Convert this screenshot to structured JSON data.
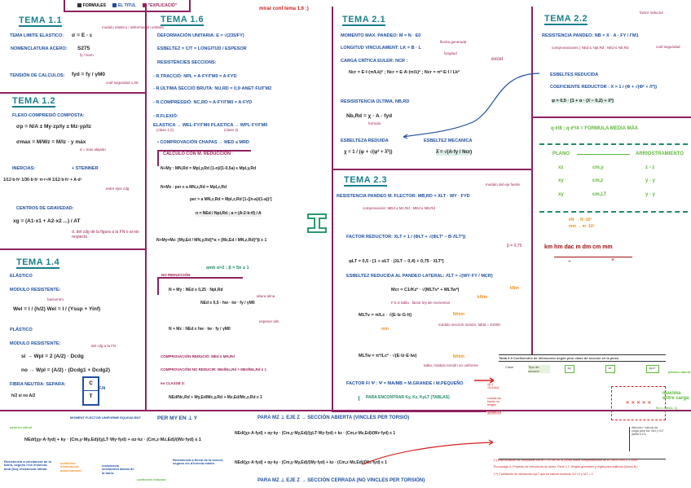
{
  "legend": {
    "items": [
      {
        "label": "FORMULES",
        "color": "#333333"
      },
      {
        "label": "EL TITUL",
        "color": "#1d4fa0"
      },
      {
        "label": "\"EXPLICACIÓ\"",
        "color": "#a0205a"
      }
    ]
  },
  "note_top": "mirar conf tema 1.6 :)",
  "colors": {
    "heading": "#1a7f8c",
    "title": "#1d4fa0",
    "explain": "#a0205a",
    "divider": "#8e2160",
    "green": "#5fb83a",
    "orange": "#f08c1a",
    "red": "#d42020"
  },
  "t11": {
    "title": "TEMA 1.1",
    "lines": [
      {
        "label": "TEMA LIMITE ELASTICO:",
        "formula": "σ = E · ε",
        "note": "modulo elastico / deformación unitaria"
      },
      {
        "label": "NOMENCLATURA ACERO:",
        "formula": "S275",
        "note": "fy / Nom"
      },
      {
        "label": "TENSIÓN DE CALCULOS:",
        "formula": "fyd = fy / γM0",
        "note": "coef seguridad 1,05"
      }
    ]
  },
  "t12": {
    "title": "TEMA 1.2",
    "flexo": "FLEXO-COMPRESIÓ COMPOSTA:",
    "f1": "σp = N/A ± My·zp/Iy ± Mz·yp/Iz",
    "f2": "σmax = M/Wz = M/Iz · y máx",
    "f2note": "d = max alejado",
    "inercias": "INERCIAS:",
    "steiner": "+ STEINNER",
    "f3": "1/12·b·h³   1/36·b·h³   π·r⁴/4   1/12·b·h³ + A·d²",
    "f3note": "entre ejes cdg",
    "centros": "CENTROS DE GRAVEDAD:",
    "f4": "xg = (A1·x1 + A2·x2 ...) / AT",
    "f4note": "d. del cdg de la figura a la FN o al eix respecto"
  },
  "t14": {
    "title": "TEMA 1.4",
    "elastico": "ELÁSTICO",
    "modulo": "MODULO RESISTENTE:",
    "f1": "Wel = I / (h/2)     Wel = I / (Ysup + Yinf)",
    "f1note": "baricentro",
    "plastico": "PLÁSTICO",
    "modulo2": "MODULO RESISTENTE:",
    "f2": "si → Wpl = 2 (A/2) · Dcdg",
    "f2note": "del cdg a la FN",
    "f3": "no → Wpl = (A/2) · (Dcdg1 + Dcdg2)",
    "fibra": "FIBRA NEUTRA: separa:",
    "fibra_sub": "h/2  si  no  A/2",
    "box": [
      "C",
      "T"
    ],
    "boxnote": "F.N"
  },
  "t16": {
    "title": "TEMA 1.6",
    "lines": [
      "DEFORMACIÓN UNITARIA: ε = √(235/fy)",
      "ESBELTEZ = c/t = longitud / espesor",
      "RESISTÈNCIES SECCIONS:",
      "- R.TRACCIÓ: Npl = A·fy/γM0 = A·fyd",
      "- R.ÚLTIMA SECCIÓ BRUTA: Nu,Rd = 0,9·Anet·fu/γM2",
      "- R.COMPRESSIÓ: Nc,Rd = A·fy/γM0 = A·fyd",
      "- R.FLEXIÓ:",
      "ELASTICA → Wel·fy/γM0     PLASTICA → Wpl·fy/γM0",
      "• COMPROVACIÓN CHAPAS → MEd ≤ MRd"
    ],
    "class_notes": [
      "(clase 1,2)",
      "(clase 3)"
    ],
    "reduccion": "CALCULO CON M. REDUCCIÓN",
    "r1": "N+My :  MN,Rd = Mpl,y,Rd (1-n)/(1-0,5a) ≤ Mpl,y,Rd",
    "r2": "N+Mz :  per ≤ a   MN,z,Rd = Mpl,z,Rd",
    "r3": "per > a   MN,z,Rd = Mpl,z,Rd [1-((n-a)/(1-a))²]",
    "r4": "n = NEd / Npl,Rd ;   a = (A-2·b·tf) / A",
    "r5": "N+My+Mz: [My,Ed / MN,y,Rd]^α + [Mz,Ed / MN,z,Rd]^β ≤ 1",
    "r6": "amb α=2 ;  β = 5n ≥ 1",
    "no_reduccion": "NO REDUCCIÓN",
    "n1": "N + My :  NEd ≤ 0,25 · Npl,Rd",
    "n2": "NEd ≤ 0,5 · hw · tw · fy / γM0",
    "n2note": "altura alma",
    "n3": "N + Mz :  NEd ≤ hw · tw · fy / γM0",
    "n3note": "espesor alm",
    "c1": "COMPROVACIÓN REDUCIÓ: MEd ≤ MN,Rd",
    "c2": "COMPROVACIÓN NO REDUCIR: NEd/Nc,Rd + MEd/Mc,Rd ≤ 1",
    "c3": "en CLASSE 3:",
    "c4": "NEd/Nc,Rd + My,Ed/Mc,y,Rd + Mz,Ed/Mc,z,Rd ≤ 1"
  },
  "t21": {
    "title": "TEMA 2.1",
    "lines": [
      "MOMENTO MAX. PANDEO: M = N · e0",
      "LONGITUD VINCULAMENT: Lk = β · L",
      "CARGA CRÍTICA EULER: Ncr :",
      "Ncr = E·I·(π/Lk)² ;  Ncr = E·A·(π/λ)² ;  Ncr = π²·E·I / Lk²",
      "RESISISTENCIA ÚLTIMA, Nb,Rd",
      "Nb,Rd = χ · A · fyd"
    ],
    "notes": [
      "excel",
      "flecha generada",
      "taula",
      "longitud",
      "esbeltez",
      "taula",
      "formula",
      "formula"
    ],
    "esb_red": "ESBELTEZA REDUIDA",
    "esb_red_f": "χ = 1 / (φ + √(φ² + λ̄²))",
    "esb_mec": "ESBELTEZ MECANICA",
    "esb_mec_f": "λ̄ = √(A·fy / Ncr)"
  },
  "t22": {
    "title": "TEMA 2.2",
    "l1": "RESISTENCIA PANDEO:  Nb = χ · A · fy / γM1",
    "l1notes": [
      "factor reductor",
      "coef seguridad"
    ],
    "comp": "comprovaciones { NEd ≤ Npl,Rd ;  NEd ≤ Nb,Rd",
    "esb": "ESBELTES REDUCIDA",
    "coef": "COEFICIENTE REDUCTOR :  χ = 1 / (φ + √(φ² + λ̄²))",
    "phi": "φ = 0,5 · [1 + α · (λ̄ − 0,2) + λ̄²]"
  },
  "green_box": {
    "formula": "q·ℓ/8 ; q·ℓ²/4 = FORMULA MEDIA MÀX",
    "plano": "PLANO",
    "arr": "ARRIOSTRAMIENTO",
    "rows": [
      [
        "xz",
        "cm,y",
        "z - z"
      ],
      [
        "xy",
        "cm,z",
        "y - y"
      ],
      [
        "xy",
        "cm,LT",
        "y - y"
      ]
    ],
    "units": [
      "kN → N   ·10³",
      "mm → m   ·10³"
    ],
    "scale": "km hm dac m dm cm mm",
    "scale_signs": [
      "÷",
      "×"
    ]
  },
  "t23": {
    "title": "TEMA 2.3",
    "l1": "RESISTENCIA PANDEO M. FLECTOR:   Mb,Rd = χLT · Wy · fyd",
    "l1note": "modulo del eje fuerte",
    "comp": "comprovación: MEd ≤ Mc,Rd ;  MEd ≤ Mb,Rd",
    "fr": "FACTOR REDUCTOR:  χLT = 1 / (φLT + √(φLT² − β·λ̄LT²))",
    "beta": "β = 0,75",
    "phi": "φLT = 0,5 · [1 + αLT · (λ̄LT − 0,4) + 0,75 · λ̄LT²]",
    "esb": "ESBELTEZ REDUCIDA AL PANDEO LATERAL:   λ̄LT = √(Wy·fy / Mcr)",
    "knm": "kNm",
    "mcr": "Mcr = C1/Kz² · √(MLTv² + MLTw²)",
    "mcrnote": "kN/m",
    "fss": "F.S.S tabla : factor ley de momentos",
    "mltv": "MLTv = π/Lc · √(E·Iz·G·It)",
    "mltvnote": "módulo sección torsión, tabla  = 81000",
    "mltw": "MLTw = π²/Lc² · √(E·Iz·E·Iw)",
    "mltwnote": "tabla, módulo torsión no uniforme",
    "nmm": "N/mm",
    "mm": "mm",
    "psi": "FACTOR FI Ψ :  Ψ = Ma/Mb = m.grande / m.pequeño",
    "tablas": "PARA ENCONTRAR Ky, Kz, KyLT (TABLAS)"
  },
  "bottom": {
    "title1": "PER My EN ⊥ y",
    "title2": "PARA Mz ⊥ eje z → SECCIÓN ABIERTA (vincles per torsió)",
    "title3": "PARA Mz ⊥ eje z → SECCIÓN CERRADA (no vincles per torsión)",
    "eq1": "NEd/(χy·A·fyd) + ky · (Cm,y·My,Ed)/(χLT·Wy·fyd) + αz·kz · (Cm,z·Mz,Ed)/(Wz·fyd) ≤ 1",
    "eq2": "NEd/(χz·A·fyd) + αy·ky · (Cm,y·My,Ed)/(χLT·Wy·fyd) + kz · (Cm,z·Mz,Ed)/(Wz·fyd) ≤ 1",
    "eq3": "NEd/(χz·A·fyd) + αy·ky · (Cm,y·My,Ed)/(Wy·fyd) + kz · (Cm,z·Mz,Ed)/(Wz·fyd) ≤ 1",
    "notes": [
      "axial de càlcul",
      "moment flector uniforme equivalent",
      "Resistencia a vinclament de la barra, segons l'eix d'inèrcia, amb [Nu] resistencia última",
      "coeficient d'interacció axial-moment",
      "resistencia vinclament lateral de la barra",
      "coeficient reductor",
      "Resistencia a flexió de la secció, segons eix d'inèrcia mínim"
    ]
  },
  "table_ref": {
    "caption": "Tabla 6.9 Coeficientes de interacción según peor clase de sección en la pieza",
    "cols": [
      "Clase",
      "Tipo de sección",
      "ky",
      "kz",
      "kyLT"
    ],
    "notes_right": "Atencion / cálculo de carga para Mz, Mcr y λ̄LT (tabla 6.10)",
    "annot": [
      "λ̄y ≤ √(Lk/dz)",
      "cuando las barras no tengan",
      "λ̄y max 1.0",
      "pandeo lateral",
      "maxima entre carga",
      "Kz = min(1; 1)"
    ],
    "footnote": [
      "(*) Esta ecuación es compatible con el CTE-DB SE-A (2006) sobre comportamiento de EC3/EN 1993-1-1:2005.",
      "Eurocódigo 3: Proyecto de estructuras de acero. Parte 1-1: Reglas generales y reglas para edificios (Anexo B).",
      "(**) Coeficiente de interacción kyLT que se calcula tomando λ̄LT=0 y αLT = 0"
    ]
  }
}
